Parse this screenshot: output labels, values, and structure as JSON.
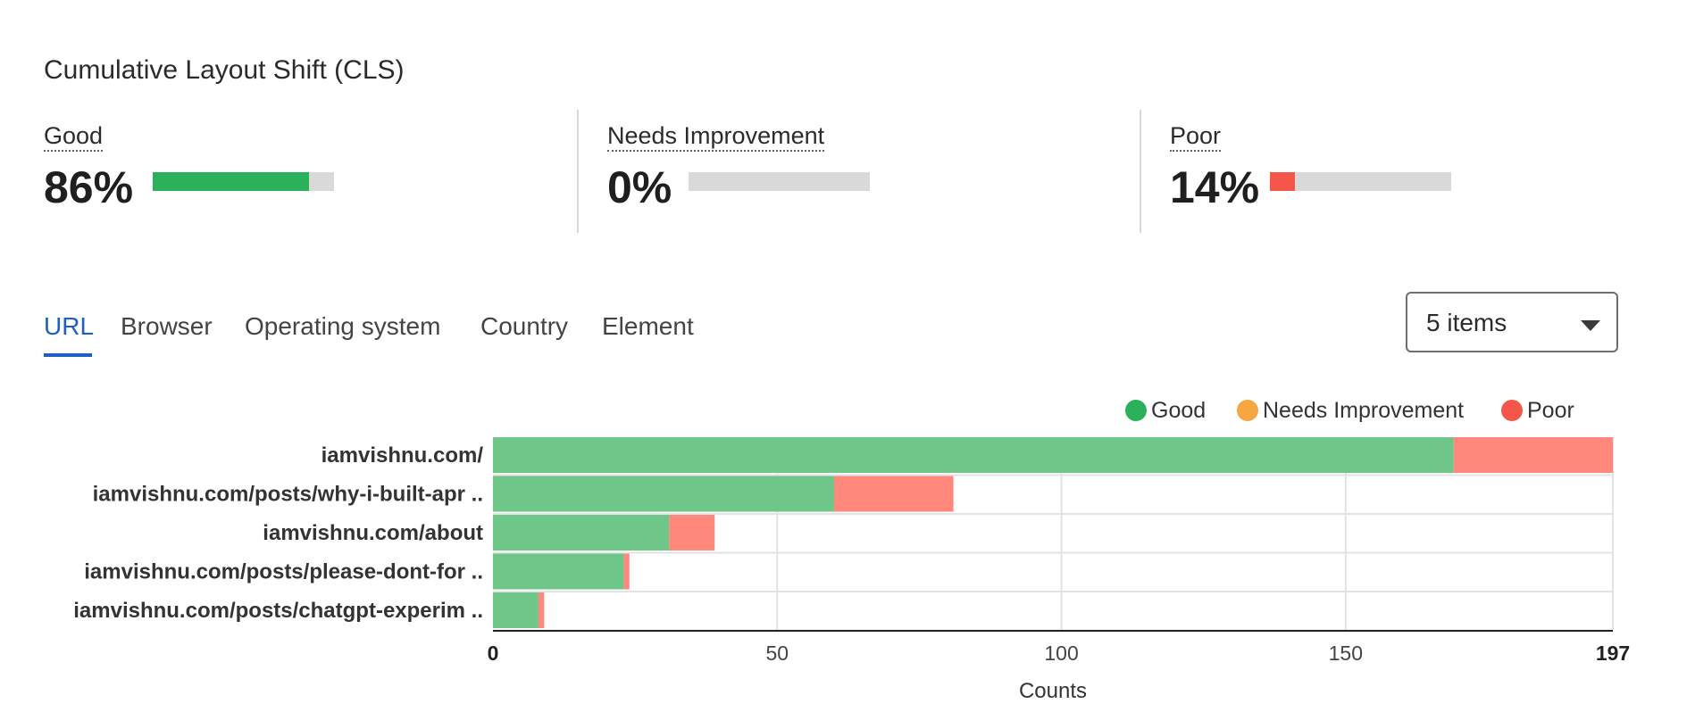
{
  "title": "Cumulative Layout Shift (CLS)",
  "metrics": [
    {
      "label": "Good",
      "value": "86%",
      "fraction": 0.86,
      "color": "#2bb15a"
    },
    {
      "label": "Needs Improvement",
      "value": "0%",
      "fraction": 0.0,
      "color": "#f5a742"
    },
    {
      "label": "Poor",
      "value": "14%",
      "fraction": 0.14,
      "color": "#f4574a"
    }
  ],
  "tabs": [
    {
      "label": "URL",
      "active": true
    },
    {
      "label": "Browser",
      "active": false
    },
    {
      "label": "Operating system",
      "active": false
    },
    {
      "label": "Country",
      "active": false
    },
    {
      "label": "Element",
      "active": false
    }
  ],
  "items_select": {
    "value": "5 items"
  },
  "colors": {
    "good": "#2bb15a",
    "needs_improvement": "#f5a742",
    "poor": "#f4574a",
    "good_bar": "#6ec688",
    "poor_bar": "#ff877c",
    "tab_active": "#1f5fbf"
  },
  "chart_data": {
    "type": "bar",
    "orientation": "horizontal",
    "stacked": true,
    "categories": [
      "iamvishnu.com/",
      "iamvishnu.com/posts/why-i-built-apr ..",
      "iamvishnu.com/about",
      "iamvishnu.com/posts/please-dont-for ..",
      "iamvishnu.com/posts/chatgpt-experim .."
    ],
    "series": [
      {
        "name": "Good",
        "values": [
          169,
          60,
          31,
          23,
          8
        ]
      },
      {
        "name": "Needs Improvement",
        "values": [
          0,
          0,
          0,
          0,
          0
        ]
      },
      {
        "name": "Poor",
        "values": [
          28,
          21,
          8,
          1,
          1
        ]
      }
    ],
    "xlabel": "Counts",
    "xlim": [
      0,
      197
    ],
    "xticks": [
      0,
      50,
      100,
      150,
      197
    ],
    "grid": true,
    "legend_position": "top-right"
  }
}
